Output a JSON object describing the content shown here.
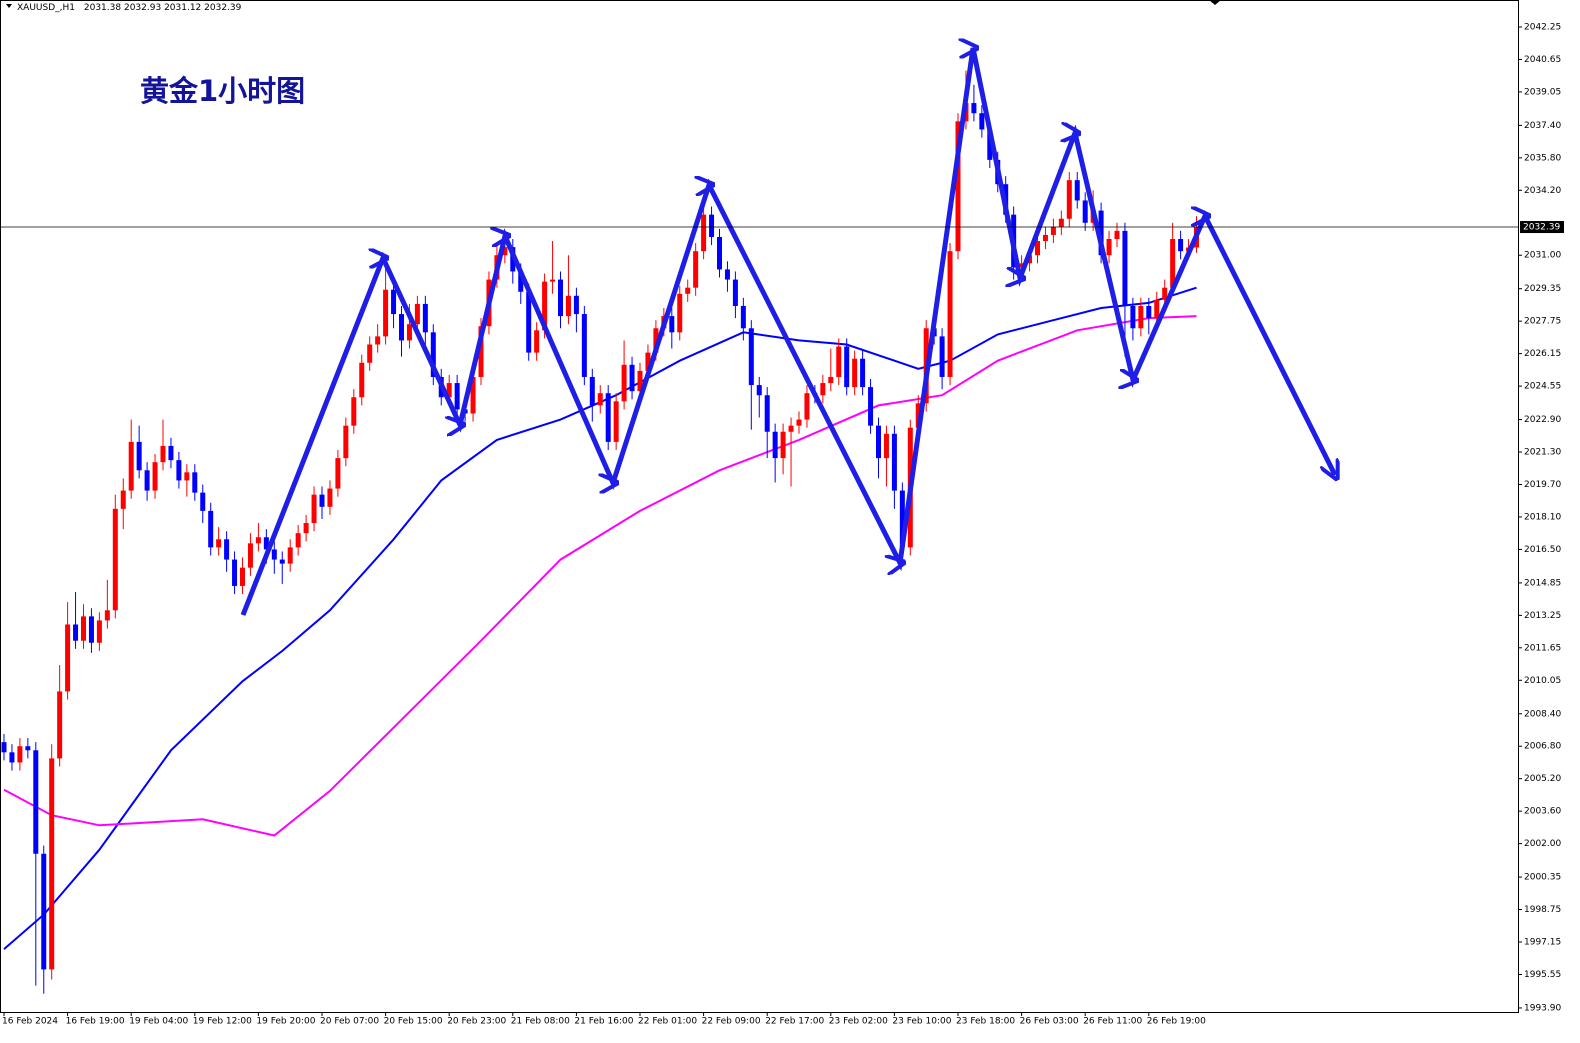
{
  "chart_data": {
    "type": "candlestick",
    "symbol": "XAUUSD_,H1",
    "ohlc_header": [
      2031.38,
      2032.93,
      2031.12,
      2032.39
    ],
    "title": "黄金1小时图",
    "up_color": "#ff0000",
    "down_color": "#0000ff",
    "last_price": 2032.39,
    "ylim": [
      1993.7,
      2043.58
    ],
    "yticks": [
      2042.25,
      2040.65,
      2039.05,
      {
        "value": 2037.4,
        "label": "2037.40"
      },
      {
        "value": 2035.8,
        "label": "2035.80"
      },
      {
        "value": 2034.2,
        "label": "2034.20"
      },
      {
        "value": 2031,
        "label": "2031.00"
      },
      2029.35,
      2027.75,
      2026.15,
      2024.55,
      {
        "value": 2022.9,
        "label": "2022.90"
      },
      {
        "value": 2021.3,
        "label": "2021.30"
      },
      {
        "value": 2019.7,
        "label": "2019.70"
      },
      {
        "value": 2018.1,
        "label": "2018.10"
      },
      {
        "value": 2016.5,
        "label": "2016.50"
      },
      2014.85,
      2013.25,
      2011.65,
      2010.05,
      {
        "value": 2008.4,
        "label": "2008.40"
      },
      {
        "value": 2006.8,
        "label": "2006.80"
      },
      {
        "value": 2005.2,
        "label": "2005.20"
      },
      {
        "value": 2003.6,
        "label": "2003.60"
      },
      {
        "value": 2002,
        "label": "2002.00"
      },
      2000.35,
      1998.75,
      1997.15,
      1995.55,
      {
        "value": 1993.9,
        "label": "1993.90"
      }
    ],
    "categories": [
      "16 Feb 2024",
      null,
      null,
      null,
      null,
      null,
      null,
      null,
      "16 Feb 19:00",
      null,
      null,
      null,
      null,
      null,
      null,
      null,
      "19 Feb 04:00",
      null,
      null,
      null,
      null,
      null,
      null,
      null,
      "19 Feb 12:00",
      null,
      null,
      null,
      null,
      null,
      null,
      null,
      "19 Feb 20:00",
      null,
      null,
      null,
      null,
      null,
      null,
      null,
      "20 Feb 07:00",
      null,
      null,
      null,
      null,
      null,
      null,
      null,
      "20 Feb 15:00",
      null,
      null,
      null,
      null,
      null,
      null,
      null,
      "20 Feb 23:00",
      null,
      null,
      null,
      null,
      null,
      null,
      null,
      "21 Feb 08:00",
      null,
      null,
      null,
      null,
      null,
      null,
      null,
      "21 Feb 16:00",
      null,
      null,
      null,
      null,
      null,
      null,
      null,
      "22 Feb 01:00",
      null,
      null,
      null,
      null,
      null,
      null,
      null,
      "22 Feb 09:00",
      null,
      null,
      null,
      null,
      null,
      null,
      null,
      "22 Feb 17:00",
      null,
      null,
      null,
      null,
      null,
      null,
      null,
      "23 Feb 02:00",
      null,
      null,
      null,
      null,
      null,
      null,
      null,
      "23 Feb 10:00",
      null,
      null,
      null,
      null,
      null,
      null,
      null,
      "23 Feb 18:00",
      null,
      null,
      null,
      null,
      null,
      null,
      null,
      "26 Feb 03:00",
      null,
      null,
      null,
      null,
      null,
      null,
      null,
      "26 Feb 11:00",
      null,
      null,
      null,
      null,
      null,
      null,
      null,
      "26 Feb 19:00",
      null,
      null,
      null,
      null,
      null,
      null
    ],
    "open": [
      2007.0,
      2006.5,
      2006.0,
      2006.8,
      2006.6,
      2001.5,
      1995.8,
      2006.2,
      2009.5,
      2012.8,
      2012.0,
      2013.2,
      2011.9,
      2013.0,
      2013.5,
      2018.5,
      2019.4,
      2021.8,
      2020.4,
      2019.4,
      2020.8,
      2021.6,
      2020.9,
      2019.9,
      2020.3,
      2019.3,
      2018.4,
      2016.6,
      2017.0,
      2016.0,
      2014.7,
      2015.6,
      2016.8,
      2017.1,
      2016.5,
      2016.0,
      2015.8,
      2016.6,
      2017.3,
      2017.8,
      2019.2,
      2018.6,
      2019.5,
      2021.0,
      2022.6,
      2024.0,
      2025.7,
      2026.6,
      2027.0,
      2029.3,
      2028.1,
      2026.8,
      2027.6,
      2028.6,
      2027.2,
      2025.0,
      2024.0,
      2024.7,
      2023.4,
      2023.2,
      2025.0,
      2027.5,
      2029.8,
      2031.0,
      2031.4,
      2030.2,
      2029.2,
      2026.2,
      2027.3,
      2029.7,
      2029.8,
      2028.0,
      2029.0,
      2028.1,
      2025.0,
      2023.6,
      2024.2,
      2021.8,
      2023.8,
      2025.6,
      2024.3,
      2025.3,
      2026.2,
      2027.4,
      2028.0,
      2027.2,
      2029.1,
      2029.4,
      2031.2,
      2033.0,
      2031.9,
      2030.3,
      2029.8,
      2028.5,
      2027.4,
      2024.6,
      2024.1,
      2022.3,
      2021.0,
      2022.3,
      2022.6,
      2022.9,
      2024.2,
      2024.1,
      2024.7,
      2025.0,
      2026.5,
      2024.5,
      2025.9,
      2024.5,
      2022.6,
      2021.0,
      2022.2,
      2019.4,
      2016.6,
      2022.5,
      2023.7,
      2027.4,
      2027.0,
      2025.0,
      2031.2,
      2037.6,
      2038.5,
      2038.0,
      2037.2,
      2035.7,
      2034.5,
      2033.0,
      2030.4,
      2030.6,
      2031.0,
      2031.7,
      2032.0,
      2032.4,
      2032.8,
      2034.7,
      2033.7,
      2032.6,
      2033.2,
      2031.0,
      2031.8,
      2032.2,
      2028.5,
      2027.4,
      2028.5,
      2027.9,
      2028.8,
      2029.4,
      2031.8,
      2031.2,
      2031.38
    ],
    "high": [
      2007.4,
      2006.9,
      2007.2,
      2007.2,
      2007.0,
      2001.9,
      2006.9,
      2010.8,
      2013.9,
      2014.4,
      2013.8,
      2013.6,
      2013.4,
      2015.0,
      2019.2,
      2020.0,
      2022.9,
      2022.6,
      2020.8,
      2021.2,
      2022.9,
      2022.0,
      2021.3,
      2020.7,
      2020.7,
      2019.7,
      2018.8,
      2017.6,
      2017.4,
      2016.4,
      2016.1,
      2017.3,
      2017.8,
      2017.5,
      2016.9,
      2016.4,
      2017.0,
      2017.7,
      2018.2,
      2019.6,
      2019.6,
      2019.9,
      2021.4,
      2023.0,
      2024.4,
      2026.1,
      2027.0,
      2027.6,
      2030.6,
      2029.7,
      2028.5,
      2028.6,
      2029.0,
      2029.0,
      2027.6,
      2025.4,
      2025.1,
      2025.1,
      2023.8,
      2025.4,
      2027.9,
      2030.2,
      2031.5,
      2031.8,
      2031.8,
      2030.6,
      2029.6,
      2027.7,
      2030.1,
      2031.7,
      2030.2,
      2031.0,
      2029.4,
      2028.5,
      2025.4,
      2024.6,
      2024.6,
      2024.2,
      2026.8,
      2026.0,
      2025.7,
      2026.6,
      2027.8,
      2028.4,
      2028.4,
      2029.5,
      2029.8,
      2031.6,
      2033.6,
      2033.4,
      2032.3,
      2030.7,
      2030.2,
      2028.9,
      2027.8,
      2025.0,
      2024.5,
      2022.7,
      2022.7,
      2023.0,
      2023.3,
      2024.6,
      2024.6,
      2025.1,
      2026.4,
      2026.9,
      2026.9,
      2026.3,
      2026.3,
      2024.9,
      2023.0,
      2022.6,
      2022.6,
      2019.8,
      2022.9,
      2024.1,
      2027.8,
      2028.4,
      2027.4,
      2031.6,
      2038.0,
      2040.1,
      2039.4,
      2038.4,
      2037.6,
      2036.1,
      2034.9,
      2033.4,
      2031.0,
      2031.4,
      2032.1,
      2032.4,
      2032.8,
      2033.2,
      2035.1,
      2035.1,
      2034.1,
      2034.2,
      2033.6,
      2032.2,
      2032.6,
      2032.6,
      2028.9,
      2028.9,
      2028.9,
      2029.2,
      2029.8,
      2032.6,
      2032.2,
      2031.8,
      2032.93
    ],
    "low": [
      2006.1,
      2005.6,
      2005.6,
      2006.2,
      1995.0,
      1994.6,
      1995.3,
      2005.8,
      2009.1,
      2011.6,
      2011.6,
      2011.4,
      2011.5,
      2012.6,
      2013.1,
      2017.5,
      2019.0,
      2020.0,
      2018.9,
      2019.0,
      2020.4,
      2020.5,
      2019.5,
      2019.1,
      2018.9,
      2017.8,
      2016.2,
      2016.2,
      2015.4,
      2014.3,
      2014.3,
      2015.2,
      2016.4,
      2015.8,
      2015.3,
      2014.8,
      2015.4,
      2016.2,
      2016.9,
      2017.4,
      2018.0,
      2018.2,
      2019.1,
      2020.6,
      2022.2,
      2023.6,
      2025.3,
      2026.2,
      2026.6,
      2027.4,
      2026.0,
      2026.4,
      2027.2,
      2026.5,
      2024.6,
      2023.6,
      2023.6,
      2023.0,
      2022.8,
      2022.8,
      2024.6,
      2027.1,
      2029.4,
      2030.6,
      2029.6,
      2028.6,
      2025.8,
      2025.8,
      2026.9,
      2029.1,
      2027.4,
      2027.6,
      2027.2,
      2024.6,
      2022.8,
      2023.2,
      2021.4,
      2021.4,
      2023.4,
      2023.9,
      2023.9,
      2024.9,
      2025.8,
      2027.0,
      2026.4,
      2026.8,
      2028.7,
      2029.0,
      2030.8,
      2031.5,
      2029.9,
      2029.2,
      2027.9,
      2026.8,
      2022.4,
      2023.0,
      2021.0,
      2019.8,
      2020.2,
      2019.6,
      2022.2,
      2022.5,
      2023.7,
      2023.7,
      2024.3,
      2024.6,
      2024.1,
      2024.1,
      2024.1,
      2022.2,
      2020.0,
      2019.6,
      2018.5,
      2016.0,
      2016.2,
      2022.1,
      2023.3,
      2026.6,
      2024.4,
      2024.6,
      2030.8,
      2037.2,
      2037.6,
      2036.8,
      2035.3,
      2034.1,
      2032.6,
      2029.8,
      2029.9,
      2030.2,
      2030.6,
      2031.3,
      2031.6,
      2032.0,
      2032.4,
      2033.3,
      2032.2,
      2032.2,
      2030.6,
      2030.6,
      2031.4,
      2026.0,
      2026.8,
      2027.0,
      2027.1,
      2027.5,
      2028.4,
      2029.0,
      2030.8,
      2030.8,
      2031.12
    ],
    "close": [
      2006.5,
      2006.0,
      2006.8,
      2006.6,
      2001.5,
      1995.8,
      2006.2,
      2009.5,
      2012.8,
      2012.0,
      2013.2,
      2011.9,
      2013.0,
      2013.5,
      2018.5,
      2019.4,
      2021.8,
      2020.4,
      2019.4,
      2020.8,
      2021.6,
      2020.9,
      2019.9,
      2020.3,
      2019.3,
      2018.4,
      2016.6,
      2017.0,
      2016.0,
      2014.7,
      2015.6,
      2016.8,
      2017.1,
      2016.5,
      2016.0,
      2015.8,
      2016.6,
      2017.3,
      2017.8,
      2019.2,
      2018.6,
      2019.5,
      2021.0,
      2022.6,
      2024.0,
      2025.7,
      2026.6,
      2027.0,
      2029.3,
      2028.1,
      2026.8,
      2027.6,
      2028.6,
      2027.2,
      2025.0,
      2024.0,
      2024.7,
      2023.4,
      2023.2,
      2025.0,
      2027.5,
      2029.8,
      2031.0,
      2031.4,
      2030.2,
      2029.2,
      2026.2,
      2027.3,
      2029.7,
      2029.8,
      2028.0,
      2029.0,
      2028.1,
      2025.0,
      2023.6,
      2024.2,
      2021.8,
      2023.8,
      2025.6,
      2024.3,
      2025.3,
      2026.2,
      2027.4,
      2028.0,
      2027.2,
      2029.1,
      2029.4,
      2031.2,
      2033.0,
      2031.9,
      2030.3,
      2029.8,
      2028.5,
      2027.4,
      2024.6,
      2024.1,
      2022.3,
      2021.0,
      2022.3,
      2022.6,
      2022.9,
      2024.2,
      2024.1,
      2024.7,
      2025.0,
      2026.5,
      2024.5,
      2025.9,
      2024.5,
      2022.6,
      2021.0,
      2022.2,
      2019.4,
      2016.6,
      2022.5,
      2023.7,
      2027.4,
      2027.0,
      2025.0,
      2031.2,
      2037.6,
      2038.5,
      2038.0,
      2037.2,
      2035.7,
      2034.5,
      2033.0,
      2030.4,
      2030.6,
      2031.0,
      2031.7,
      2032.0,
      2032.4,
      2032.8,
      2034.7,
      2033.7,
      2032.6,
      2033.2,
      2031.0,
      2031.8,
      2032.2,
      2028.5,
      2027.4,
      2028.5,
      2027.9,
      2028.8,
      2029.4,
      2031.8,
      2031.2,
      2031.38,
      2032.39
    ],
    "moving_averages": [
      {
        "color": "#0000ff",
        "x": [
          0,
          5,
          12,
          21,
          30,
          35,
          41,
          49,
          55,
          62,
          70,
          77,
          85,
          93,
          100,
          106,
          115,
          119,
          125,
          132,
          138,
          144,
          150
        ],
        "values": [
          1996.8,
          1998.5,
          2001.7,
          2006.6,
          2010.0,
          2011.5,
          2013.5,
          2017.0,
          2019.9,
          2021.9,
          2022.9,
          2024.1,
          2025.8,
          2027.2,
          2026.8,
          2026.6,
          2025.4,
          2025.8,
          2027.1,
          2027.8,
          2028.4,
          2028.65,
          2029.4
        ]
      },
      {
        "color": "#ff00ff",
        "x": [
          0,
          6,
          12,
          25,
          34,
          41,
          50,
          60,
          70,
          80,
          90,
          100,
          110,
          118,
          125,
          135,
          144,
          150
        ],
        "values": [
          2004.65,
          2003.4,
          2002.9,
          2003.2,
          2002.4,
          2004.6,
          2008.1,
          2012.0,
          2016.0,
          2018.4,
          2020.4,
          2021.9,
          2023.6,
          2024.1,
          2025.8,
          2027.3,
          2027.9,
          2028.0
        ]
      }
    ]
  }
}
